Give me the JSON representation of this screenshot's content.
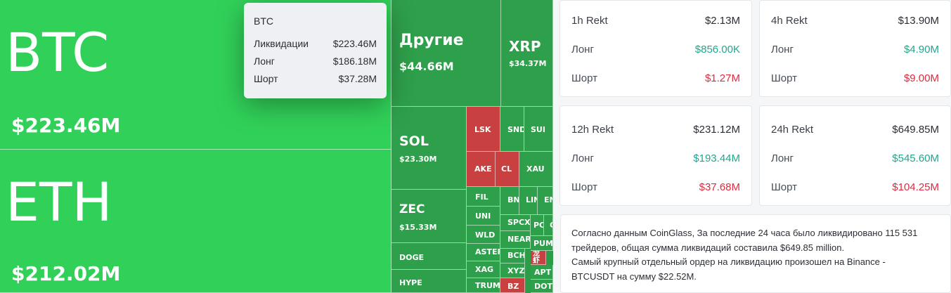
{
  "colors": {
    "liq_light_green": "#31d159",
    "liq_mid_green": "#2e9f4a",
    "liq_dark_green": "#2b8f43",
    "liq_red": "#c8403f",
    "long_text": "#21a68d",
    "short_text": "#e0293f"
  },
  "treemap": [
    {
      "key": "btc",
      "symbol": "BTC",
      "value": "$223.46M",
      "color": "light"
    },
    {
      "key": "eth",
      "symbol": "ETH",
      "value": "$212.02M",
      "color": "light"
    },
    {
      "key": "other",
      "symbol": "Другие",
      "value": "$44.66M",
      "color": "mid"
    },
    {
      "key": "xrp",
      "symbol": "XRP",
      "value": "$34.37M",
      "color": "mid"
    },
    {
      "key": "sol",
      "symbol": "SOL",
      "value": "$23.30M",
      "color": "mid"
    },
    {
      "key": "zec",
      "symbol": "ZEC",
      "value": "$15.33M",
      "color": "mid"
    },
    {
      "key": "doge",
      "symbol": "DOGE",
      "value": "",
      "color": "mid"
    },
    {
      "key": "hype",
      "symbol": "HYPE",
      "value": "",
      "color": "mid"
    },
    {
      "key": "lsk",
      "symbol": "LSK",
      "value": "",
      "color": "red"
    },
    {
      "key": "snd",
      "symbol": "SND",
      "value": "",
      "color": "mid"
    },
    {
      "key": "sui",
      "symbol": "SUI",
      "value": "",
      "color": "mid"
    },
    {
      "key": "ake",
      "symbol": "AKE",
      "value": "",
      "color": "red"
    },
    {
      "key": "cl",
      "symbol": "CL",
      "value": "",
      "color": "red"
    },
    {
      "key": "xau",
      "symbol": "XAU",
      "value": "",
      "color": "mid"
    },
    {
      "key": "fil",
      "symbol": "FIL",
      "value": "",
      "color": "mid"
    },
    {
      "key": "bn",
      "symbol": "BN",
      "value": "",
      "color": "mid"
    },
    {
      "key": "lin",
      "symbol": "LIN",
      "value": "",
      "color": "mid"
    },
    {
      "key": "en",
      "symbol": "EN",
      "value": "",
      "color": "mid"
    },
    {
      "key": "uni",
      "symbol": "UNI",
      "value": "",
      "color": "mid"
    },
    {
      "key": "spcx",
      "symbol": "SPCX",
      "value": "",
      "color": "mid"
    },
    {
      "key": "pc",
      "symbol": "PC",
      "value": "",
      "color": "mid"
    },
    {
      "key": "c",
      "symbol": "C",
      "value": "",
      "color": "mid"
    },
    {
      "key": "wld",
      "symbol": "WLD",
      "value": "",
      "color": "mid"
    },
    {
      "key": "near",
      "symbol": "NEAR",
      "value": "",
      "color": "mid"
    },
    {
      "key": "pum",
      "symbol": "PUM",
      "value": "",
      "color": "mid"
    },
    {
      "key": "aster",
      "symbol": "ASTER",
      "value": "",
      "color": "mid"
    },
    {
      "key": "bch",
      "symbol": "BCH",
      "value": "",
      "color": "mid"
    },
    {
      "key": "cjk",
      "symbol": "龙虾",
      "value": "",
      "color": "red"
    },
    {
      "key": "xag",
      "symbol": "XAG",
      "value": "",
      "color": "mid"
    },
    {
      "key": "xyz",
      "symbol": "XYZ:",
      "value": "",
      "color": "mid"
    },
    {
      "key": "apt",
      "symbol": "APT",
      "value": "",
      "color": "mid"
    },
    {
      "key": "trump",
      "symbol": "TRUMP",
      "value": "",
      "color": "mid"
    },
    {
      "key": "bz",
      "symbol": "BZ",
      "value": "",
      "color": "red"
    },
    {
      "key": "dot",
      "symbol": "DOT",
      "value": "",
      "color": "mid"
    }
  ],
  "tooltip": {
    "title": "BTC",
    "rows": [
      {
        "label": "Ликвидации",
        "value": "$223.46M"
      },
      {
        "label": "Лонг",
        "value": "$186.18M"
      },
      {
        "label": "Шорт",
        "value": "$37.28M"
      }
    ]
  },
  "cards": [
    {
      "key": "1h",
      "title": "1h Rekt",
      "total": "$2.13M",
      "long_label": "Лонг",
      "long": "$856.00K",
      "short_label": "Шорт",
      "short": "$1.27M"
    },
    {
      "key": "4h",
      "title": "4h Rekt",
      "total": "$13.90M",
      "long_label": "Лонг",
      "long": "$4.90M",
      "short_label": "Шорт",
      "short": "$9.00M"
    },
    {
      "key": "12h",
      "title": "12h Rekt",
      "total": "$231.12M",
      "long_label": "Лонг",
      "long": "$193.44M",
      "short_label": "Шорт",
      "short": "$37.68M"
    },
    {
      "key": "24h",
      "title": "24h Rekt",
      "total": "$649.85M",
      "long_label": "Лонг",
      "long": "$545.60M",
      "short_label": "Шорт",
      "short": "$104.25M"
    }
  ],
  "summary": {
    "line1": "Согласно данным CoinGlass, За последние 24 часа было ликвидировано 115 531",
    "line2": "трейдеров, общая сумма ликвидаций составила $649.85 million.",
    "line3": "Самый крупный отдельный ордер на ликвидацию произошел на Binance -",
    "line4": "BTCUSDT на сумму $22.52M."
  }
}
